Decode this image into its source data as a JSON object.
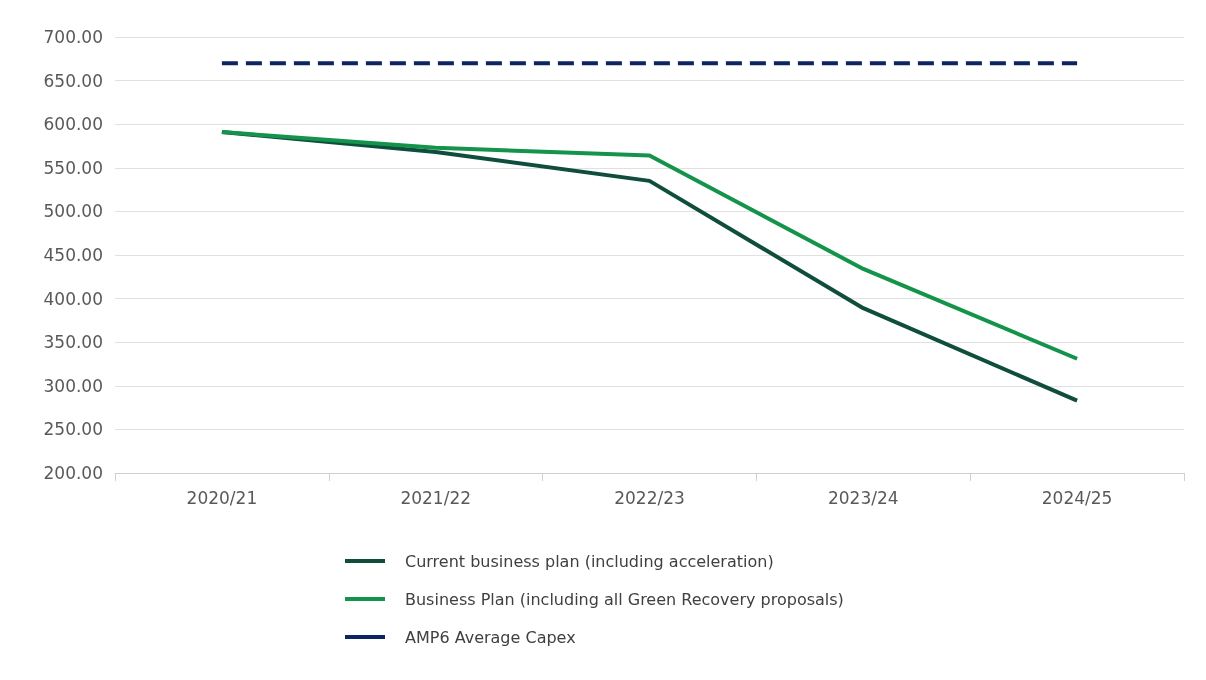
{
  "chart_data": {
    "type": "line",
    "categories": [
      "2020/21",
      "2021/22",
      "2022/23",
      "2023/24",
      "2024/25"
    ],
    "series": [
      {
        "name": "Current business plan (including acceleration)",
        "color": "#0f4d3c",
        "values": [
          591,
          568,
          535,
          389,
          283
        ]
      },
      {
        "name": "Business Plan (including all Green Recovery proposals)",
        "color": "#14934a",
        "values": [
          591,
          573,
          564,
          434,
          331
        ]
      },
      {
        "name": "AMP6 Average Capex",
        "color": "#0d2461",
        "values": [
          670,
          670,
          670,
          670,
          670
        ],
        "line_style": "dashed"
      }
    ],
    "ylim": [
      200,
      700
    ],
    "yticks": [
      {
        "value": 200,
        "label": "200.00"
      },
      {
        "value": 250,
        "label": "250.00"
      },
      {
        "value": 300,
        "label": "300.00"
      },
      {
        "value": 350,
        "label": "350.00"
      },
      {
        "value": 400,
        "label": "400.00"
      },
      {
        "value": 450,
        "label": "450.00"
      },
      {
        "value": 500,
        "label": "500.00"
      },
      {
        "value": 550,
        "label": "550.00"
      },
      {
        "value": 600,
        "label": "600.00"
      },
      {
        "value": 650,
        "label": "650.00"
      },
      {
        "value": 700,
        "label": "700.00"
      }
    ],
    "grid": "y",
    "legend": "bottom",
    "marker": "none",
    "line_style": "solid"
  }
}
